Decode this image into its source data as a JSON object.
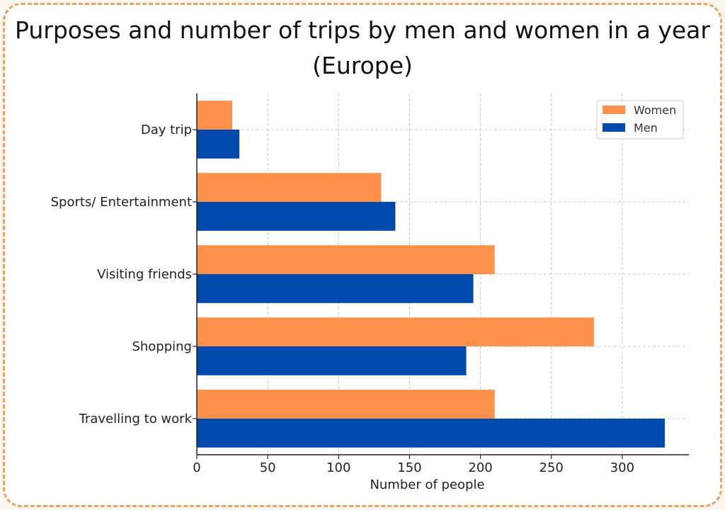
{
  "chart_data": {
    "type": "bar",
    "orientation": "horizontal",
    "title_line1": "Purposes and number of trips by men and women in a year",
    "title_line2": "(Europe)",
    "xlabel": "Number of people",
    "ylabel": "",
    "categories": [
      "Travelling to work",
      "Shopping",
      "Visiting friends",
      "Sports/ Entertainment",
      "Day trip"
    ],
    "series": [
      {
        "name": "Women",
        "color": "#ff914d",
        "values": [
          210,
          280,
          210,
          130,
          25
        ]
      },
      {
        "name": "Men",
        "color": "#004aad",
        "values": [
          330,
          190,
          195,
          140,
          30
        ]
      }
    ],
    "xlim": [
      0,
      347
    ],
    "xticks": [
      0,
      50,
      100,
      150,
      200,
      250,
      300
    ],
    "grid": true,
    "legend_position": "top-right"
  },
  "frame": {
    "border_color": "#f0a060"
  }
}
